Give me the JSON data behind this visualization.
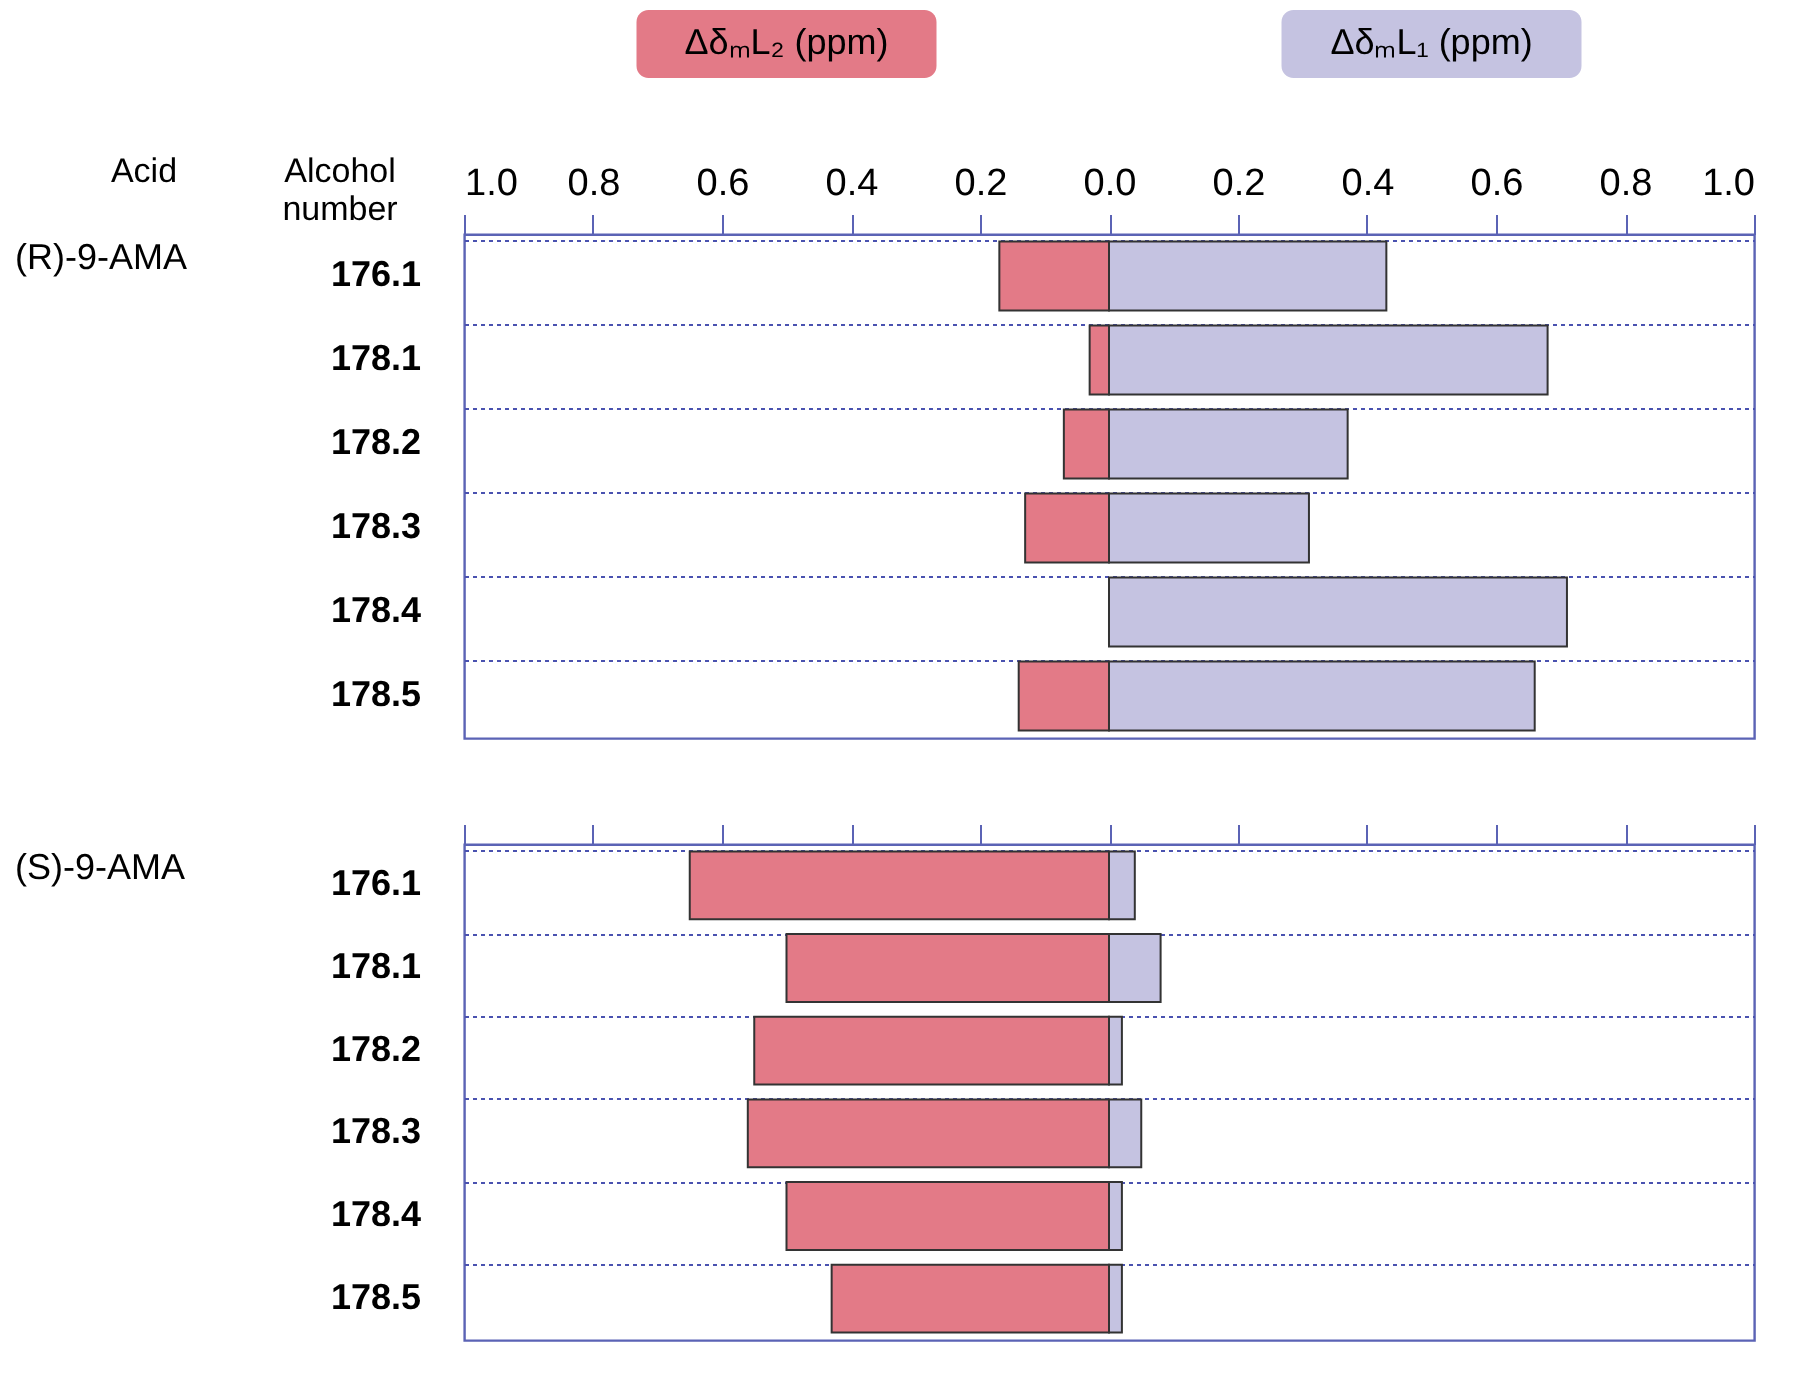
{
  "chart_data": [
    {
      "type": "bar",
      "orientation": "horizontal",
      "ylabel": "(R)-9-AMA",
      "annotations": [
        "Acid",
        "Alcohol number"
      ],
      "categories": [
        "176.1",
        "178.1",
        "178.2",
        "178.3",
        "178.4",
        "178.5"
      ],
      "stacked": true,
      "series": [
        {
          "name": "ΔδₘL₂ (ppm)",
          "color": "#e37a87",
          "values": [
            -0.17,
            -0.03,
            -0.07,
            -0.13,
            null,
            -0.14
          ]
        },
        {
          "name": "ΔδₘL₁ (ppm)",
          "color": "#c5c3e1",
          "values": [
            0.43,
            0.68,
            0.37,
            0.31,
            0.71,
            0.66
          ]
        }
      ],
      "xlim": [
        -1,
        1
      ],
      "xticks": [
        {
          "value": -1,
          "label": "1.0"
        },
        {
          "value": -0.8,
          "label": "0.8"
        },
        {
          "value": -0.6,
          "label": "0.6"
        },
        {
          "value": -0.4,
          "label": "0.4"
        },
        {
          "value": -0.2,
          "label": "0.2"
        },
        {
          "value": 0,
          "label": "0.0"
        },
        {
          "value": 0.2,
          "label": "0.2"
        },
        {
          "value": 0.4,
          "label": "0.4"
        },
        {
          "value": 0.6,
          "label": "0.6"
        },
        {
          "value": 0.8,
          "label": "0.8"
        },
        {
          "value": 1,
          "label": "1.0"
        }
      ],
      "grid": "y"
    },
    {
      "type": "bar",
      "orientation": "horizontal",
      "ylabel": "(S)-9-AMA",
      "categories": [
        "176.1",
        "178.1",
        "178.2",
        "178.3",
        "178.4",
        "178.5"
      ],
      "stacked": true,
      "series": [
        {
          "color": "#e37a87",
          "values": [
            -0.65,
            -0.5,
            -0.55,
            -0.56,
            -0.5,
            -0.43
          ]
        },
        {
          "color": "#c5c3e1",
          "values": [
            0.04,
            0.08,
            0.02,
            0.05,
            0.02,
            0.02
          ]
        }
      ],
      "xlim": [
        -1,
        1
      ],
      "xticks": [
        {
          "value": -1,
          "label": null
        },
        {
          "value": -0.8,
          "label": null
        },
        {
          "value": -0.6,
          "label": null
        },
        {
          "value": -0.4,
          "label": null
        },
        {
          "value": -0.2,
          "label": null
        },
        {
          "value": 0,
          "label": null
        },
        {
          "value": 0.2,
          "label": null
        },
        {
          "value": 0.4,
          "label": null
        },
        {
          "value": 0.6,
          "label": null
        },
        {
          "value": 0.8,
          "label": null
        },
        {
          "value": 1,
          "label": null
        }
      ],
      "grid": "y",
      "tick_labels": "y"
    }
  ]
}
